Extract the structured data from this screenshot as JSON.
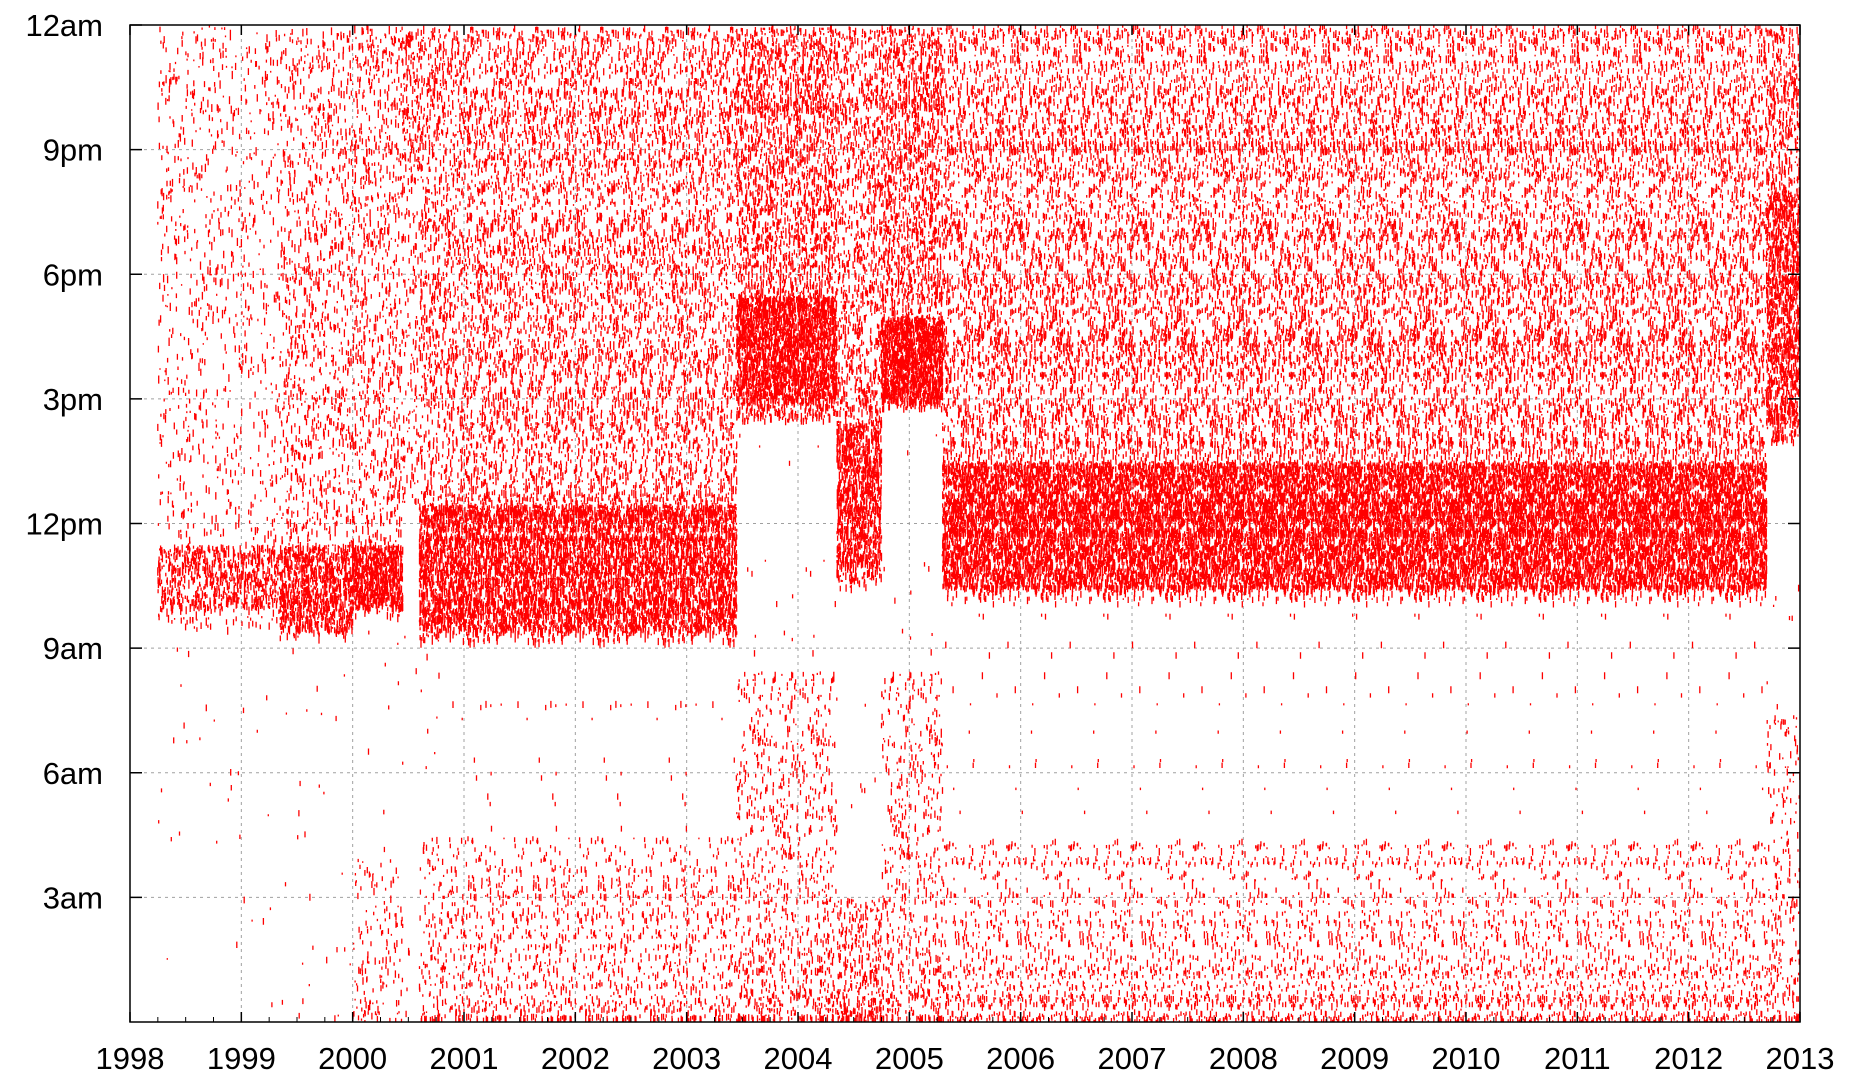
{
  "chart_data": {
    "type": "scatter",
    "title": "",
    "xlabel": "",
    "ylabel": "",
    "x_axis": {
      "kind": "year",
      "range": [
        1998,
        2013
      ],
      "tick_labels": [
        "1998",
        "1999",
        "2000",
        "2001",
        "2002",
        "2003",
        "2004",
        "2005",
        "2006",
        "2007",
        "2008",
        "2009",
        "2010",
        "2011",
        "2012",
        "2013"
      ]
    },
    "y_axis": {
      "kind": "time-of-day",
      "range_hours": [
        0,
        24
      ],
      "tick_hours": [
        3,
        6,
        9,
        12,
        15,
        18,
        21,
        24
      ],
      "tick_labels": [
        "3am",
        "6am",
        "9am",
        "12pm",
        "3pm",
        "6pm",
        "9pm",
        "12am"
      ]
    },
    "grid": true,
    "legend": "none",
    "marker": "short vertical dash",
    "series": [
      {
        "color": "#ff0000",
        "density_segments": [
          {
            "x": [
              1998.25,
              1999.35
            ],
            "core_hours": [
              9.5,
              24
            ],
            "night_hours": [
              0,
              3
            ],
            "night_density": 0.02,
            "core_density": 0.18,
            "peak_hours": [
              10.0,
              11.5
            ]
          },
          {
            "x": [
              1999.35,
              2000.0
            ],
            "core_hours": [
              9.3,
              24
            ],
            "night_hours": [
              0,
              3.5
            ],
            "night_density": 0.05,
            "core_density": 0.5,
            "peak_hours": [
              9.5,
              11.5
            ]
          },
          {
            "x": [
              2000.0,
              2000.45
            ],
            "core_hours": [
              9.8,
              24
            ],
            "night_hours": [
              0,
              4
            ],
            "night_density": 0.25,
            "core_density": 0.6,
            "peak_hours": [
              10.0,
              11.5
            ]
          },
          {
            "x": [
              2000.45,
              2000.6
            ],
            "core_hours": [
              12.5,
              24
            ],
            "night_hours": [
              0,
              2
            ],
            "night_density": 0.05,
            "core_density": 0.25,
            "peak_hours": [
              20.0,
              24.0
            ]
          },
          {
            "x": [
              2000.6,
              2003.45
            ],
            "core_hours": [
              9.2,
              24
            ],
            "night_hours": [
              0,
              4.5
            ],
            "night_density": 0.35,
            "core_density": 0.9,
            "peak_hours": [
              9.5,
              12.5
            ]
          },
          {
            "x": [
              2003.45,
              2004.35
            ],
            "core_hours": [
              14.5,
              24
            ],
            "night_hours": [
              0,
              8.5
            ],
            "night_density": 0.75,
            "core_density": 0.95,
            "peak_hours": [
              15.0,
              17.5
            ]
          },
          {
            "x": [
              2004.35,
              2004.75
            ],
            "core_hours": [
              10.5,
              24
            ],
            "night_hours": [
              0,
              3
            ],
            "night_density": 0.6,
            "core_density": 0.95,
            "peak_hours": [
              11.0,
              14.5
            ]
          },
          {
            "x": [
              2004.75,
              2005.3
            ],
            "core_hours": [
              14.8,
              24
            ],
            "night_hours": [
              0,
              8.5
            ],
            "night_density": 0.75,
            "core_density": 0.95,
            "peak_hours": [
              15.0,
              17.0
            ]
          },
          {
            "x": [
              2005.3,
              2012.7
            ],
            "core_hours": [
              10.2,
              24
            ],
            "night_hours": [
              0,
              4.5
            ],
            "night_density": 0.35,
            "core_density": 0.95,
            "peak_hours": [
              10.5,
              13.5
            ]
          },
          {
            "x": [
              2012.7,
              2013.0
            ],
            "core_hours": [
              14.0,
              24
            ],
            "night_hours": [
              0,
              7.5
            ],
            "night_density": 0.55,
            "core_density": 0.95,
            "peak_hours": [
              14.5,
              20.0
            ]
          }
        ]
      }
    ]
  }
}
